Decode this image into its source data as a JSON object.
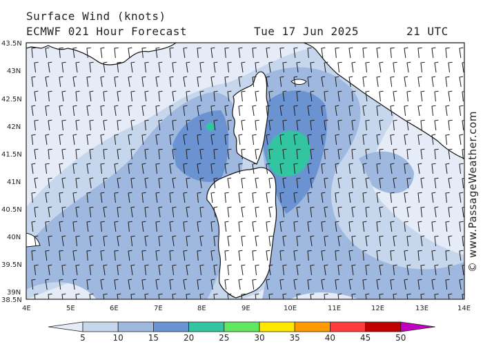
{
  "header": {
    "title": "Surface Wind (knots)",
    "model_line": "ECMWF 021 Hour Forecast",
    "date": "Tue 17 Jun 2025",
    "time": "21 UTC"
  },
  "map": {
    "region": "Sardinia / Corsica",
    "lon_range": [
      4,
      14
    ],
    "lat_range": [
      38.5,
      43.5
    ],
    "lat_ticks": [
      "43.5N",
      "43N",
      "42.5N",
      "42N",
      "41.5N",
      "41N",
      "40.5N",
      "40N",
      "39.5N",
      "39N",
      "38.5N"
    ],
    "lon_ticks": [
      "4E",
      "5E",
      "6E",
      "7E",
      "8E",
      "9E",
      "10E",
      "11E",
      "12E",
      "13E",
      "14E"
    ],
    "land_color": "#ffffff",
    "wind_barb_color": "#1a1a1a"
  },
  "legend": {
    "colors": [
      "#e6ecf7",
      "#c6d6ec",
      "#9eb8e0",
      "#6b93d2",
      "#33c4a0",
      "#60e860",
      "#ffe800",
      "#ff9a00",
      "#ff3c3c",
      "#c00000",
      "#c000c0"
    ],
    "labels": [
      "5",
      "10",
      "15",
      "20",
      "25",
      "30",
      "35",
      "40",
      "45",
      "50"
    ]
  },
  "watermark": "© www.PassageWeather.com"
}
